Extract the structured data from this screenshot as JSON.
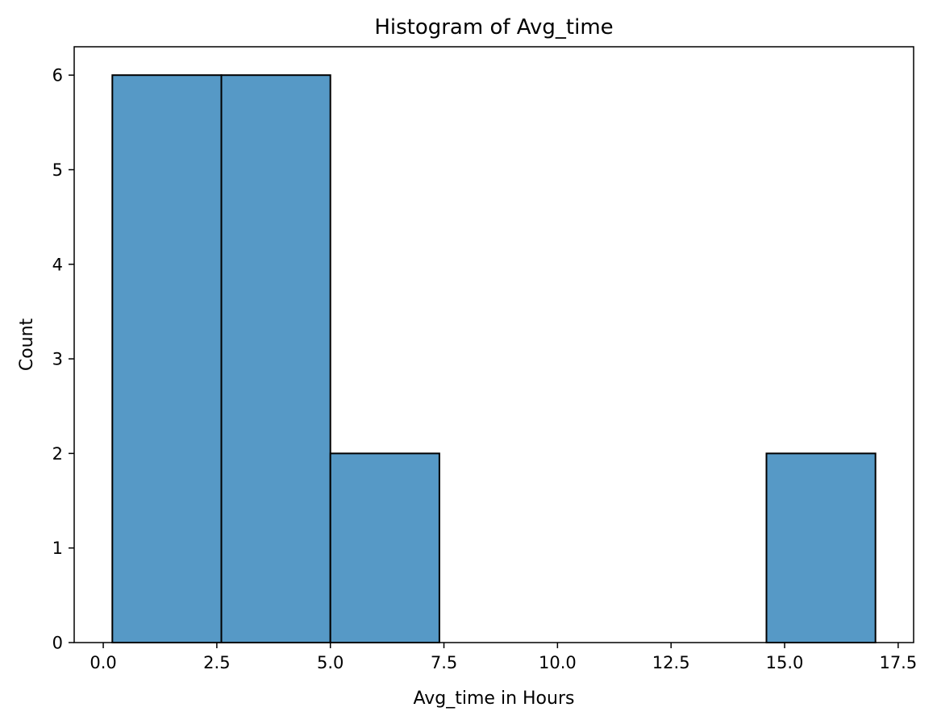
{
  "chart_data": {
    "type": "bar",
    "subtype": "histogram",
    "title": "Histogram of Avg_time",
    "xlabel": "Avg_time in Hours",
    "ylabel": "Count",
    "bins": [
      {
        "start": 0.2,
        "end": 2.6,
        "count": 6
      },
      {
        "start": 2.6,
        "end": 5.0,
        "count": 6
      },
      {
        "start": 5.0,
        "end": 7.4,
        "count": 2
      },
      {
        "start": 7.4,
        "end": 9.8,
        "count": 0
      },
      {
        "start": 9.8,
        "end": 12.2,
        "count": 0
      },
      {
        "start": 12.2,
        "end": 14.6,
        "count": 0
      },
      {
        "start": 14.6,
        "end": 17.0,
        "count": 2
      }
    ],
    "xlim": [
      -0.64,
      17.84
    ],
    "ylim": [
      0,
      6.3
    ],
    "xticks": [
      0.0,
      2.5,
      5.0,
      7.5,
      10.0,
      12.5,
      15.0,
      17.5
    ],
    "xtick_labels": [
      "0.0",
      "2.5",
      "5.0",
      "7.5",
      "10.0",
      "12.5",
      "15.0",
      "17.5"
    ],
    "yticks": [
      0,
      1,
      2,
      3,
      4,
      5,
      6
    ],
    "ytick_labels": [
      "0",
      "1",
      "2",
      "3",
      "4",
      "5",
      "6"
    ],
    "grid": false,
    "bar_color": "#5699c6",
    "edge_color": "#000000"
  }
}
